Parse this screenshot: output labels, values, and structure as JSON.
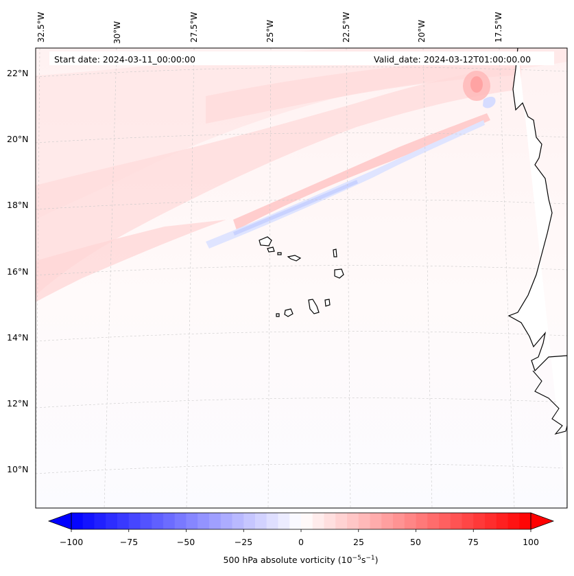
{
  "header": {
    "start_date": "Start date: 2024-03-11_00:00:00",
    "valid_date": "Valid_date: 2024-03-12T01:00:00.00"
  },
  "lon_labels": [
    "32.5°W",
    "30°W",
    "27.5°W",
    "25°W",
    "22.5°W",
    "20°W",
    "17.5°W"
  ],
  "lat_labels": [
    "22°N",
    "20°N",
    "18°N",
    "16°N",
    "14°N",
    "12°N",
    "10°N"
  ],
  "colorbar": {
    "ticks": [
      "−100",
      "−75",
      "−50",
      "−25",
      "0",
      "25",
      "50",
      "75",
      "100"
    ],
    "label": "500 hPa absolute vorticity (10",
    "label_exp1": "−5",
    "label_mid": "s",
    "label_exp2": "−1",
    "label_end": ")",
    "min": -100,
    "max": 100,
    "colormap": "bwr",
    "extend": "both"
  },
  "colors": {
    "negative": "#0000ff",
    "neutral": "#ffffff",
    "positive": "#ff0000",
    "coastline": "#000000",
    "gridline": "#bdbdbd"
  }
}
